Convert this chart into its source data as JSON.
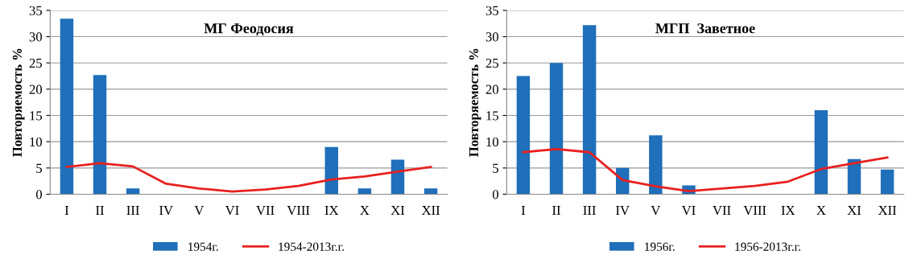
{
  "chart_data": [
    {
      "type": "bar",
      "title": "МГ Феодосия",
      "ylabel": "Повторяемость %",
      "categories": [
        "I",
        "II",
        "III",
        "IV",
        "V",
        "VI",
        "VII",
        "VIII",
        "IX",
        "X",
        "XI",
        "XII"
      ],
      "ylim": [
        0,
        35
      ],
      "yticks": [
        0,
        5,
        10,
        15,
        20,
        25,
        30,
        35
      ],
      "grid": "y",
      "legend": "bottom",
      "series": [
        {
          "name": "1954г.",
          "color": "#1f6fba",
          "values": [
            33.4,
            22.7,
            1.1,
            0,
            0,
            0,
            0,
            0,
            9,
            1.1,
            6.6,
            1.1
          ]
        },
        {
          "name": "1954-2013г.г.",
          "type": "line",
          "color": "#e8201f",
          "values": [
            5.2,
            5.9,
            5.3,
            2.0,
            1.1,
            0.5,
            0.9,
            1.6,
            2.8,
            3.4,
            4.3,
            5.2
          ]
        }
      ]
    },
    {
      "type": "bar",
      "title": "МГП  Заветное",
      "ylabel": "Повторяемость %",
      "categories": [
        "I",
        "II",
        "III",
        "IV",
        "V",
        "VI",
        "VII",
        "VIII",
        "IX",
        "X",
        "XI",
        "XII"
      ],
      "ylim": [
        0,
        35
      ],
      "yticks": [
        0,
        5,
        10,
        15,
        20,
        25,
        30,
        35
      ],
      "grid": "y",
      "legend": "bottom",
      "series": [
        {
          "name": "1956г.",
          "color": "#1f6fba",
          "values": [
            22.5,
            25,
            32.2,
            5,
            11.2,
            1.7,
            0,
            0,
            0,
            16,
            6.7,
            4.7
          ]
        },
        {
          "name": "1956-2013г.г.",
          "type": "line",
          "color": "#e8201f",
          "values": [
            8.0,
            8.6,
            8.0,
            2.7,
            1.5,
            0.6,
            1.1,
            1.6,
            2.4,
            4.8,
            5.9,
            7.0
          ]
        }
      ]
    }
  ]
}
